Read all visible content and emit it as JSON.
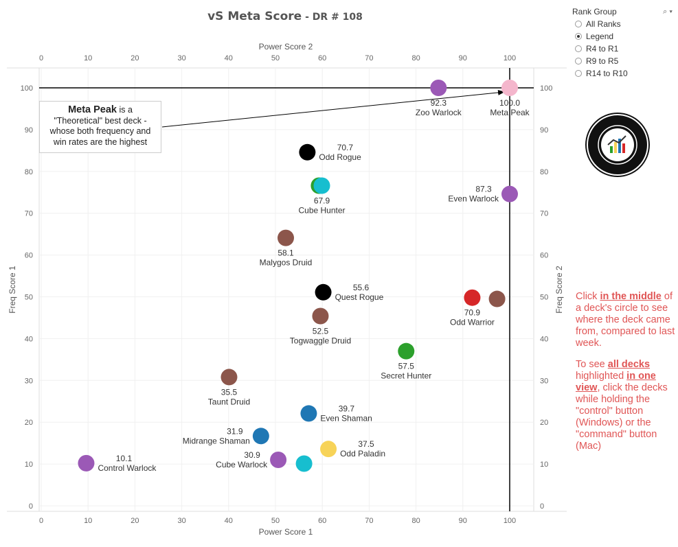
{
  "header": {
    "title_main": "vS Meta Score",
    "title_sub": " - DR # 108"
  },
  "rank_group": {
    "label": "Rank Group",
    "icons": [
      "search-icon",
      "chevron-down-icon"
    ],
    "options": [
      {
        "label": "All Ranks",
        "selected": false
      },
      {
        "label": "Legend",
        "selected": true
      },
      {
        "label": "R4 to R1",
        "selected": false
      },
      {
        "label": "R9 to R5",
        "selected": false
      },
      {
        "label": "R14 to R10",
        "selected": false
      }
    ]
  },
  "annotation": {
    "bold": "Meta Peak",
    "rest": " is a \"Theoretical\" best deck - whose both frequency and win rates are the highest"
  },
  "help": {
    "p1": [
      "Click ",
      "in the middle",
      " of a deck's circle to see where the deck came from, compared to last week."
    ],
    "p2": [
      "To see ",
      "all decks ",
      "highlighted ",
      "in one view",
      ", click the decks while holding the \"control\" button (Windows) or the \"command\" button (Mac)"
    ]
  },
  "chart_data": {
    "type": "scatter",
    "x_label_top": "Power Score 2",
    "x_label_bottom": "Power Score 1",
    "y_label_left": "Freq Score 1",
    "y_label_right": "Freq Score 2",
    "xlim": [
      0,
      105
    ],
    "ylim": [
      0,
      105
    ],
    "xticks": [
      0,
      10,
      20,
      30,
      40,
      50,
      60,
      70,
      80,
      90,
      100
    ],
    "yticks": [
      0,
      10,
      20,
      30,
      40,
      50,
      60,
      70,
      80,
      90,
      100
    ],
    "grid": true,
    "reference_lines": {
      "x": 100,
      "y": 100
    },
    "points": [
      {
        "name": "Meta Peak",
        "score": "100.0",
        "x": 100,
        "y": 100,
        "color": "#f4b6cc",
        "label_pos": "below"
      },
      {
        "name": "Zoo Warlock",
        "score": "92.3",
        "x": 84.8,
        "y": 100,
        "color": "#9b59b6",
        "label_pos": "below"
      },
      {
        "name": "Odd Rogue",
        "score": "70.7",
        "x": 56.8,
        "y": 84.6,
        "color": "#000000",
        "label_pos": "right"
      },
      {
        "name": "Cube Hunter",
        "score": "67.9",
        "x": 59.3,
        "y": 76.6,
        "color": "#2ca02c",
        "label_pos": "none"
      },
      {
        "name": "Cube Hunter",
        "score": "67.9",
        "x": 59.9,
        "y": 76.6,
        "color": "#17becf",
        "label_pos": "below"
      },
      {
        "name": "Even Warlock",
        "score": "87.3",
        "x": 100,
        "y": 74.6,
        "color": "#9b59b6",
        "label_pos": "left"
      },
      {
        "name": "Malygos Druid",
        "score": "58.1",
        "x": 52.2,
        "y": 64.1,
        "color": "#8c564b",
        "label_pos": "below"
      },
      {
        "name": "Quest Rogue",
        "score": "55.6",
        "x": 60.2,
        "y": 51.1,
        "color": "#000000",
        "label_pos": "right"
      },
      {
        "name": "Odd Warrior",
        "score": "70.9",
        "x": 92.0,
        "y": 49.8,
        "color": "#d62728",
        "label_pos": "below"
      },
      {
        "name": "",
        "score": "",
        "x": 97.3,
        "y": 49.5,
        "color": "#8c564b",
        "label_pos": "none"
      },
      {
        "name": "Togwaggle Druid",
        "score": "52.5",
        "x": 59.6,
        "y": 45.4,
        "color": "#8c564b",
        "label_pos": "below"
      },
      {
        "name": "Secret Hunter",
        "score": "57.5",
        "x": 77.9,
        "y": 37.0,
        "color": "#2ca02c",
        "label_pos": "below"
      },
      {
        "name": "Taunt Druid",
        "score": "35.5",
        "x": 40.1,
        "y": 30.8,
        "color": "#8c564b",
        "label_pos": "below"
      },
      {
        "name": "Even Shaman",
        "score": "39.7",
        "x": 57.1,
        "y": 22.1,
        "color": "#1f77b4",
        "label_pos": "right"
      },
      {
        "name": "Midrange Shaman",
        "score": "31.9",
        "x": 46.9,
        "y": 16.7,
        "color": "#1f77b4",
        "label_pos": "left"
      },
      {
        "name": "Odd Paladin",
        "score": "37.5",
        "x": 61.3,
        "y": 13.6,
        "color": "#f7d358",
        "label_pos": "right"
      },
      {
        "name": "Cube Warlock",
        "score": "30.9",
        "x": 50.6,
        "y": 11.0,
        "color": "#9b59b6",
        "label_pos": "left"
      },
      {
        "name": "",
        "score": "",
        "x": 56.1,
        "y": 10.1,
        "color": "#17becf",
        "label_pos": "none"
      },
      {
        "name": "Control Warlock",
        "score": "10.1",
        "x": 9.6,
        "y": 10.2,
        "color": "#9b59b6",
        "label_pos": "right"
      }
    ]
  }
}
